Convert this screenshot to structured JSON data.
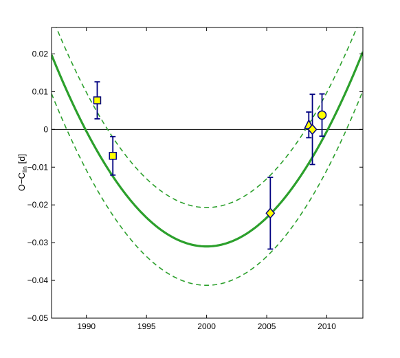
{
  "chart_data": {
    "type": "scatter",
    "title": "",
    "xlabel": "",
    "ylabel": {
      "main": "O−C",
      "sub": "lin",
      "unit": " [d]"
    },
    "xlim": [
      1987.1,
      2013
    ],
    "ylim": [
      -0.05,
      0.027
    ],
    "xticks": [
      1990,
      1995,
      2000,
      2005,
      2010
    ],
    "xtick_labels": [
      "1990",
      "1995",
      "2000",
      "2005",
      "2010"
    ],
    "yticks": [
      0.02,
      0.01,
      0,
      -0.01,
      -0.02,
      -0.03,
      -0.04,
      -0.05
    ],
    "ytick_labels": [
      "0.02",
      "0.01",
      "0",
      "−0.01",
      "−0.02",
      "−0.03",
      "−0.04",
      "−0.05"
    ],
    "grid": false,
    "zero_line": true,
    "colors": {
      "fit": "#2ca02c",
      "marker_fill": "#ffff00",
      "marker_edge": "#000080",
      "errorbar": "#000080",
      "zero_line": "#000000"
    },
    "fit_curves": [
      {
        "style": "solid",
        "vertex_x": 2000.0,
        "vertex_y": -0.031,
        "curvature": 0.000305,
        "line_width": 3.2
      },
      {
        "style": "dashed",
        "vertex_x": 2000.0,
        "vertex_y": -0.0207,
        "curvature": 0.000305,
        "line_width": 1.6
      },
      {
        "style": "dashed",
        "vertex_x": 2000.0,
        "vertex_y": -0.0413,
        "curvature": 0.000305,
        "line_width": 1.6
      }
    ],
    "points": [
      {
        "x": 1990.9,
        "y": 0.0077,
        "err": 0.0049,
        "marker": "square"
      },
      {
        "x": 1992.2,
        "y": -0.007,
        "err": 0.0051,
        "marker": "square"
      },
      {
        "x": 2005.3,
        "y": -0.0222,
        "err": 0.0095,
        "marker": "diamond"
      },
      {
        "x": 2008.5,
        "y": 0.0012,
        "err": 0.0034,
        "marker": "triangle"
      },
      {
        "x": 2008.8,
        "y": 0.0,
        "err": 0.0093,
        "marker": "diamond"
      },
      {
        "x": 2009.6,
        "y": 0.0038,
        "err": 0.0056,
        "marker": "circle"
      }
    ]
  }
}
